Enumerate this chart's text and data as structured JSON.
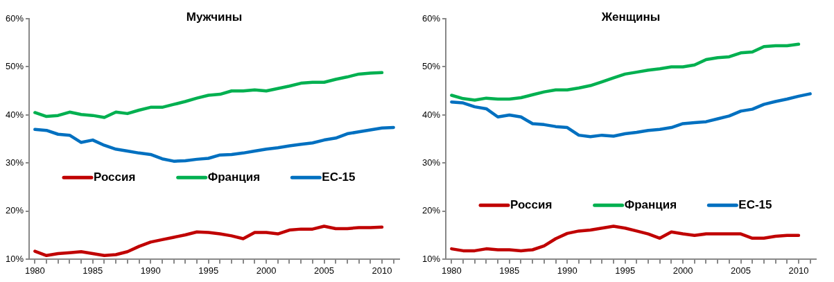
{
  "chart_data": [
    {
      "type": "line",
      "title": "Мужчины",
      "x": [
        1980,
        1981,
        1982,
        1983,
        1984,
        1985,
        1986,
        1987,
        1988,
        1989,
        1990,
        1991,
        1992,
        1993,
        1994,
        1995,
        1996,
        1997,
        1998,
        1999,
        2000,
        2001,
        2002,
        2003,
        2004,
        2005,
        2006,
        2007,
        2008,
        2009,
        2010,
        2011
      ],
      "series": [
        {
          "name": "Россия",
          "color": "#c00000",
          "values": [
            11.7,
            10.8,
            11.2,
            11.4,
            11.6,
            11.2,
            10.8,
            11.0,
            11.6,
            12.7,
            13.6,
            14.1,
            14.6,
            15.1,
            15.7,
            15.6,
            15.3,
            14.9,
            14.3,
            15.6,
            15.6,
            15.3,
            16.1,
            16.3,
            16.3,
            16.9,
            16.4,
            16.4,
            16.6,
            16.6,
            16.7,
            null
          ]
        },
        {
          "name": "Франция",
          "color": "#00b050",
          "values": [
            40.5,
            39.7,
            39.9,
            40.6,
            40.1,
            39.9,
            39.5,
            40.6,
            40.3,
            41.0,
            41.6,
            41.6,
            42.2,
            42.8,
            43.5,
            44.1,
            44.3,
            45.0,
            45.0,
            45.2,
            45.0,
            45.5,
            46.0,
            46.6,
            46.8,
            46.8,
            47.4,
            47.9,
            48.5,
            48.7,
            48.8,
            null
          ]
        },
        {
          "name": "ЕС-15",
          "color": "#0070c0",
          "values": [
            37.0,
            36.8,
            36.0,
            35.8,
            34.3,
            34.8,
            33.7,
            32.9,
            32.5,
            32.1,
            31.8,
            30.9,
            30.4,
            30.5,
            30.8,
            31.0,
            31.7,
            31.8,
            32.1,
            32.5,
            32.9,
            33.2,
            33.6,
            33.9,
            34.2,
            34.8,
            35.2,
            36.1,
            36.5,
            36.9,
            37.3,
            37.4
          ]
        }
      ],
      "xlim": [
        1979.5,
        2011.5
      ],
      "xticks": [
        1980,
        {
          "value": 1981,
          "label": null
        },
        {
          "value": 1982,
          "label": null
        },
        {
          "value": 1983,
          "label": null
        },
        {
          "value": 1984,
          "label": null
        },
        1985,
        {
          "value": 1986,
          "label": null
        },
        {
          "value": 1987,
          "label": null
        },
        {
          "value": 1988,
          "label": null
        },
        {
          "value": 1989,
          "label": null
        },
        1990,
        {
          "value": 1991,
          "label": null
        },
        {
          "value": 1992,
          "label": null
        },
        {
          "value": 1993,
          "label": null
        },
        {
          "value": 1994,
          "label": null
        },
        1995,
        {
          "value": 1996,
          "label": null
        },
        {
          "value": 1997,
          "label": null
        },
        {
          "value": 1998,
          "label": null
        },
        {
          "value": 1999,
          "label": null
        },
        2000,
        {
          "value": 2001,
          "label": null
        },
        {
          "value": 2002,
          "label": null
        },
        {
          "value": 2003,
          "label": null
        },
        {
          "value": 2004,
          "label": null
        },
        2005,
        {
          "value": 2006,
          "label": null
        },
        {
          "value": 2007,
          "label": null
        },
        {
          "value": 2008,
          "label": null
        },
        {
          "value": 2009,
          "label": null
        },
        2010,
        {
          "value": 2011,
          "label": null
        }
      ],
      "ylim": [
        10,
        60
      ],
      "yticks": [
        {
          "value": 10,
          "label": "10%"
        },
        {
          "value": 20,
          "label": "20%"
        },
        {
          "value": 30,
          "label": "30%"
        },
        {
          "value": 40,
          "label": "40%"
        },
        {
          "value": 50,
          "label": "50%"
        },
        {
          "value": 60,
          "label": "60%"
        }
      ],
      "grid": false,
      "legend": "center",
      "marker": "none",
      "line_style": "solid"
    },
    {
      "type": "line",
      "title": "Женщины",
      "x": [
        1980,
        1981,
        1982,
        1983,
        1984,
        1985,
        1986,
        1987,
        1988,
        1989,
        1990,
        1991,
        1992,
        1993,
        1994,
        1995,
        1996,
        1997,
        1998,
        1999,
        2000,
        2001,
        2002,
        2003,
        2004,
        2005,
        2006,
        2007,
        2008,
        2009,
        2010,
        2011
      ],
      "series": [
        {
          "name": "Россия",
          "color": "#c00000",
          "values": [
            12.2,
            11.8,
            11.8,
            12.2,
            12.0,
            12.0,
            11.8,
            12.0,
            12.8,
            14.3,
            15.4,
            15.9,
            16.1,
            16.5,
            16.9,
            16.5,
            15.9,
            15.3,
            14.4,
            15.7,
            15.3,
            15.0,
            15.3,
            15.3,
            15.3,
            15.3,
            14.4,
            14.4,
            14.8,
            15.0,
            15.0,
            null
          ]
        },
        {
          "name": "Франция",
          "color": "#00b050",
          "values": [
            44.1,
            43.4,
            43.1,
            43.5,
            43.3,
            43.3,
            43.6,
            44.2,
            44.8,
            45.2,
            45.2,
            45.6,
            46.1,
            46.9,
            47.7,
            48.5,
            48.9,
            49.3,
            49.6,
            50.0,
            50.0,
            50.4,
            51.5,
            51.9,
            52.1,
            52.9,
            53.1,
            54.2,
            54.4,
            54.4,
            54.7,
            null
          ]
        },
        {
          "name": "ЕС-15",
          "color": "#0070c0",
          "values": [
            42.7,
            42.5,
            41.7,
            41.3,
            39.6,
            40.0,
            39.6,
            38.2,
            38.0,
            37.6,
            37.4,
            35.8,
            35.5,
            35.8,
            35.6,
            36.1,
            36.4,
            36.8,
            37.0,
            37.4,
            38.2,
            38.4,
            38.6,
            39.2,
            39.8,
            40.8,
            41.2,
            42.2,
            42.8,
            43.3,
            43.9,
            44.4
          ]
        }
      ],
      "xlim": [
        1979.5,
        2011.5
      ],
      "xticks": [
        1980,
        {
          "value": 1981,
          "label": null
        },
        {
          "value": 1982,
          "label": null
        },
        {
          "value": 1983,
          "label": null
        },
        {
          "value": 1984,
          "label": null
        },
        1985,
        {
          "value": 1986,
          "label": null
        },
        {
          "value": 1987,
          "label": null
        },
        {
          "value": 1988,
          "label": null
        },
        {
          "value": 1989,
          "label": null
        },
        1990,
        {
          "value": 1991,
          "label": null
        },
        {
          "value": 1992,
          "label": null
        },
        {
          "value": 1993,
          "label": null
        },
        {
          "value": 1994,
          "label": null
        },
        1995,
        {
          "value": 1996,
          "label": null
        },
        {
          "value": 1997,
          "label": null
        },
        {
          "value": 1998,
          "label": null
        },
        {
          "value": 1999,
          "label": null
        },
        2000,
        {
          "value": 2001,
          "label": null
        },
        {
          "value": 2002,
          "label": null
        },
        {
          "value": 2003,
          "label": null
        },
        {
          "value": 2004,
          "label": null
        },
        2005,
        {
          "value": 2006,
          "label": null
        },
        {
          "value": 2007,
          "label": null
        },
        {
          "value": 2008,
          "label": null
        },
        {
          "value": 2009,
          "label": null
        },
        2010,
        {
          "value": 2011,
          "label": null
        }
      ],
      "ylim": [
        10,
        60
      ],
      "yticks": [
        {
          "value": 10,
          "label": "10%"
        },
        {
          "value": 20,
          "label": "20%"
        },
        {
          "value": 30,
          "label": "30%"
        },
        {
          "value": 40,
          "label": "40%"
        },
        {
          "value": 50,
          "label": "50%"
        },
        {
          "value": 60,
          "label": "60%"
        }
      ],
      "grid": false,
      "legend": "bottom",
      "marker": "none",
      "line_style": "solid"
    }
  ]
}
